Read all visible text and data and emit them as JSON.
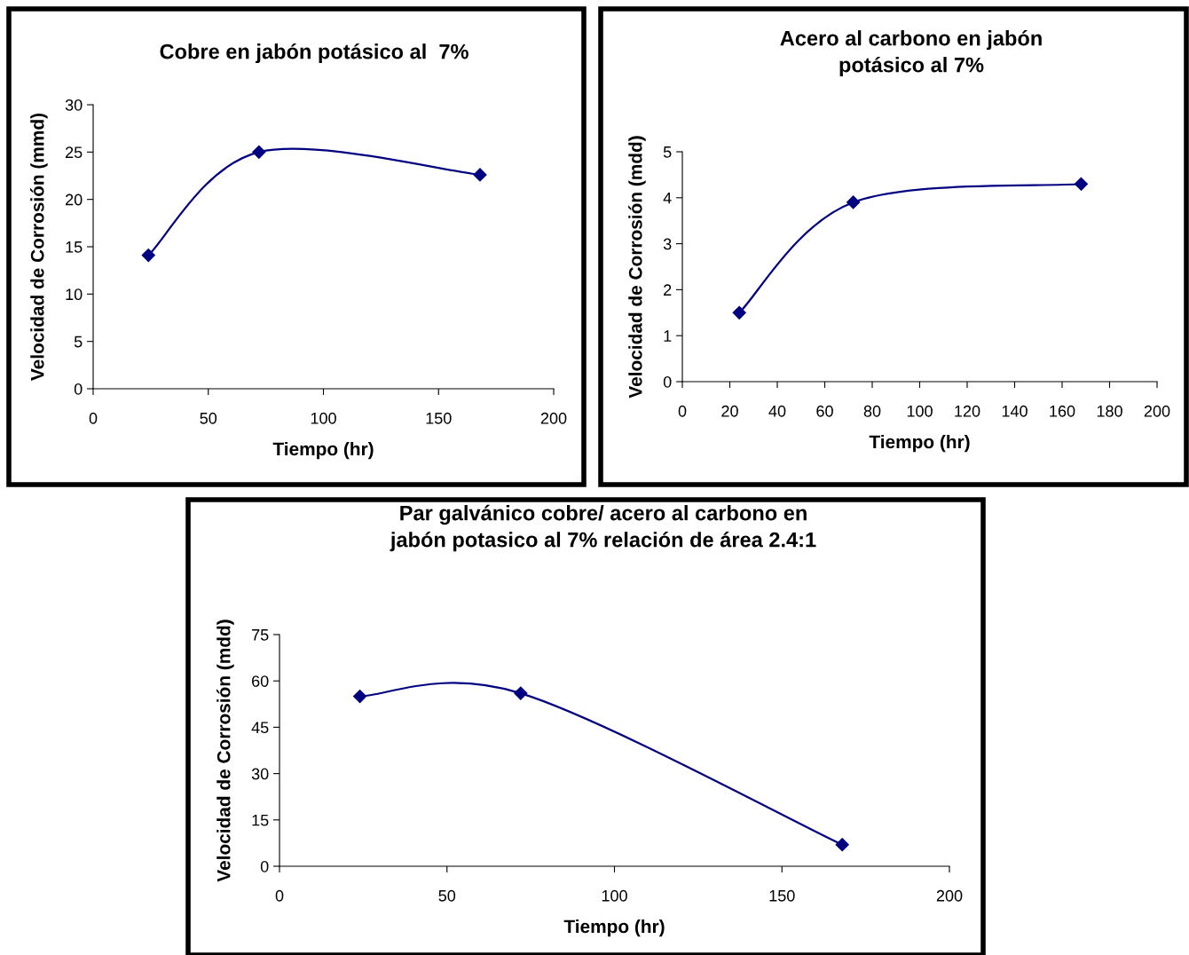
{
  "chart_data": [
    {
      "type": "line",
      "title": "Cobre en jabón potásico al  7%",
      "xlabel": "Tiempo (hr)",
      "ylabel": "Velocidad de Corrosión (mmd)",
      "x": [
        24,
        72,
        168
      ],
      "series": [
        {
          "color": "#000080",
          "values": [
            14.1,
            25,
            22.6
          ]
        }
      ],
      "xlim": [
        0,
        200
      ],
      "xticks": [
        0,
        50,
        100,
        150,
        200
      ],
      "ylim": [
        0,
        30
      ],
      "yticks": [
        0,
        5,
        10,
        15,
        20,
        25,
        30
      ],
      "grid": false,
      "legend": false,
      "marker": "diamond",
      "line_style": "solid"
    },
    {
      "type": "line",
      "title": "Acero al carbono en jabón\npotásico al 7%",
      "xlabel": "Tiempo (hr)",
      "ylabel": "Velocidad de Corrosión (mdd)",
      "x": [
        24,
        72,
        168
      ],
      "series": [
        {
          "color": "#000080",
          "values": [
            1.5,
            3.9,
            4.3
          ]
        }
      ],
      "xlim": [
        0,
        200
      ],
      "xticks": [
        0,
        20,
        40,
        60,
        80,
        100,
        120,
        140,
        160,
        180,
        200
      ],
      "ylim": [
        0,
        5
      ],
      "yticks": [
        0,
        1,
        2,
        3,
        4,
        5
      ],
      "grid": false,
      "legend": false,
      "marker": "diamond",
      "line_style": "solid"
    },
    {
      "type": "line",
      "title": "Par galvánico cobre/ acero al carbono en\njabón potasico al 7% relación de área 2.4:1",
      "xlabel": "Tiempo (hr)",
      "ylabel": "Velocidad de Corrosión (mdd)",
      "x": [
        24,
        72,
        168
      ],
      "series": [
        {
          "color": "#000080",
          "values": [
            55,
            56,
            7
          ]
        }
      ],
      "xlim": [
        0,
        200
      ],
      "xticks": [
        0,
        50,
        100,
        150,
        200
      ],
      "ylim": [
        0,
        75
      ],
      "yticks": [
        0,
        15,
        30,
        45,
        60,
        75
      ],
      "grid": false,
      "legend": false,
      "marker": "diamond",
      "line_style": "solid"
    }
  ]
}
